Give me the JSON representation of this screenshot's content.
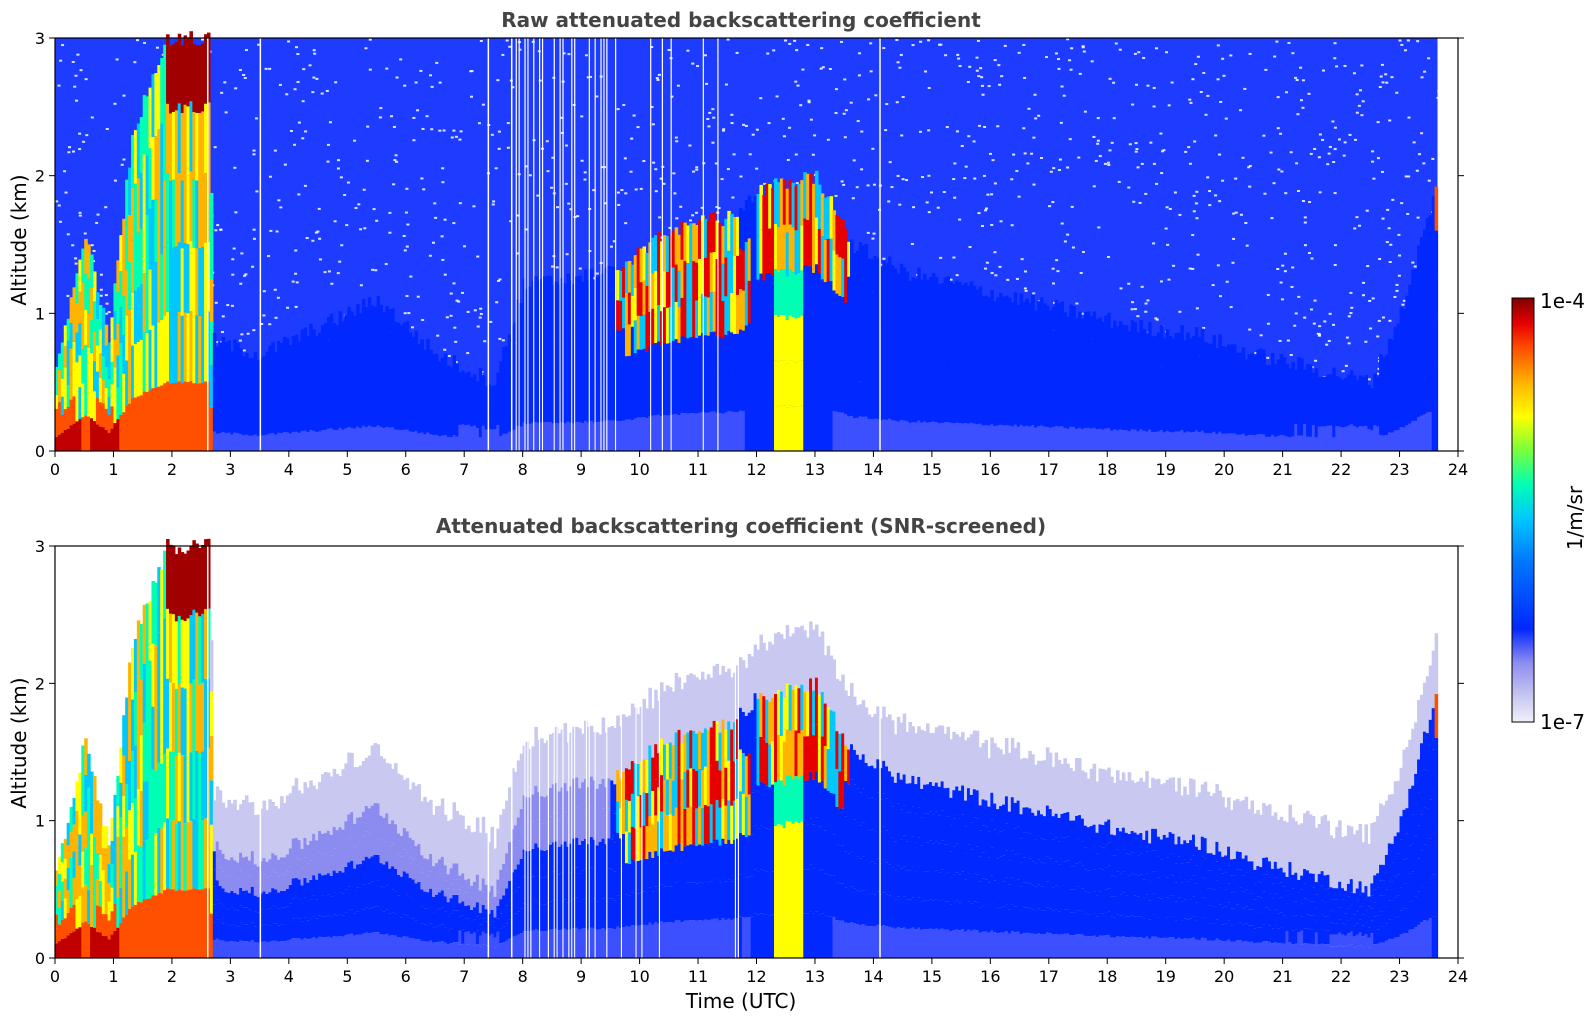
{
  "chart_data": [
    {
      "type": "heatmap",
      "title": "Raw attenuated backscattering coefficient",
      "xlabel": "",
      "ylabel": "Altitude (km)",
      "xlim": [
        0,
        24
      ],
      "ylim": [
        0,
        3
      ],
      "x_ticks": [
        "0",
        "1",
        "2",
        "3",
        "4",
        "5",
        "6",
        "7",
        "8",
        "9",
        "10",
        "11",
        "12",
        "13",
        "14",
        "15",
        "16",
        "17",
        "18",
        "19",
        "20",
        "21",
        "22",
        "23",
        "24"
      ],
      "y_ticks": [
        "0",
        "1",
        "2",
        "3"
      ],
      "data_end_time_utc": 23.65,
      "cloud_top_km": [
        [
          0,
          0.6
        ],
        [
          0.5,
          1.6
        ],
        [
          0.9,
          0.8
        ],
        [
          1.3,
          2.3
        ],
        [
          1.9,
          3.0
        ],
        [
          2.6,
          3.0
        ],
        [
          2.7,
          0.8
        ],
        [
          3.5,
          0.7
        ],
        [
          4.5,
          0.9
        ],
        [
          5.5,
          1.1
        ],
        [
          6.5,
          0.7
        ],
        [
          7.5,
          0.5
        ],
        [
          8.0,
          1.2
        ],
        [
          9.5,
          1.3
        ],
        [
          10.5,
          1.6
        ],
        [
          11.5,
          1.7
        ],
        [
          12.0,
          1.9
        ],
        [
          13.0,
          2.0
        ],
        [
          13.6,
          1.5
        ],
        [
          14.5,
          1.3
        ],
        [
          15.5,
          1.2
        ],
        [
          16.5,
          1.1
        ],
        [
          17.5,
          1.0
        ],
        [
          18.5,
          0.9
        ],
        [
          19.5,
          0.85
        ],
        [
          20.5,
          0.7
        ],
        [
          21.5,
          0.6
        ],
        [
          22.5,
          0.5
        ],
        [
          23.0,
          1.0
        ],
        [
          23.6,
          1.9
        ]
      ]
    },
    {
      "type": "heatmap",
      "title": "Attenuated backscattering coefficient (SNR-screened)",
      "xlabel": "Time (UTC)",
      "ylabel": "Altitude (km)",
      "xlim": [
        0,
        24
      ],
      "ylim": [
        0,
        3
      ],
      "x_ticks": [
        "0",
        "1",
        "2",
        "3",
        "4",
        "5",
        "6",
        "7",
        "8",
        "9",
        "10",
        "11",
        "12",
        "13",
        "14",
        "15",
        "16",
        "17",
        "18",
        "19",
        "20",
        "21",
        "22",
        "23",
        "24"
      ],
      "y_ticks": [
        "0",
        "1",
        "2",
        "3"
      ],
      "data_end_time_utc": 23.65,
      "cloud_top_km": [
        [
          0,
          0.6
        ],
        [
          0.5,
          1.6
        ],
        [
          0.9,
          0.8
        ],
        [
          1.3,
          2.3
        ],
        [
          1.9,
          3.0
        ],
        [
          2.6,
          3.0
        ],
        [
          2.7,
          0.8
        ],
        [
          3.5,
          0.7
        ],
        [
          4.5,
          0.9
        ],
        [
          5.5,
          1.1
        ],
        [
          6.5,
          0.7
        ],
        [
          7.5,
          0.5
        ],
        [
          8.0,
          1.2
        ],
        [
          9.5,
          1.3
        ],
        [
          10.5,
          1.6
        ],
        [
          11.5,
          1.7
        ],
        [
          12.0,
          1.9
        ],
        [
          13.0,
          2.0
        ],
        [
          13.6,
          1.5
        ],
        [
          14.5,
          1.3
        ],
        [
          15.5,
          1.2
        ],
        [
          16.5,
          1.1
        ],
        [
          17.5,
          1.0
        ],
        [
          18.5,
          0.9
        ],
        [
          19.5,
          0.85
        ],
        [
          20.5,
          0.7
        ],
        [
          21.5,
          0.6
        ],
        [
          22.5,
          0.5
        ],
        [
          23.0,
          1.0
        ],
        [
          23.6,
          1.9
        ]
      ]
    }
  ],
  "colorbar": {
    "label": "1/m/sr",
    "max_label": "1e-4",
    "min_label": "1e-7",
    "scale": "log",
    "colors": [
      "#f0f0fa",
      "#c8c8f0",
      "#8c8cf0",
      "#0028ff",
      "#0078ff",
      "#00c8ff",
      "#00ffb4",
      "#78ff3c",
      "#ffff00",
      "#ffb400",
      "#ff5000",
      "#e60000",
      "#800000"
    ]
  },
  "style": {
    "title_color": "#444444",
    "sky_noise_color": "#1e3cff",
    "noise_white_color": "#ffffff"
  }
}
